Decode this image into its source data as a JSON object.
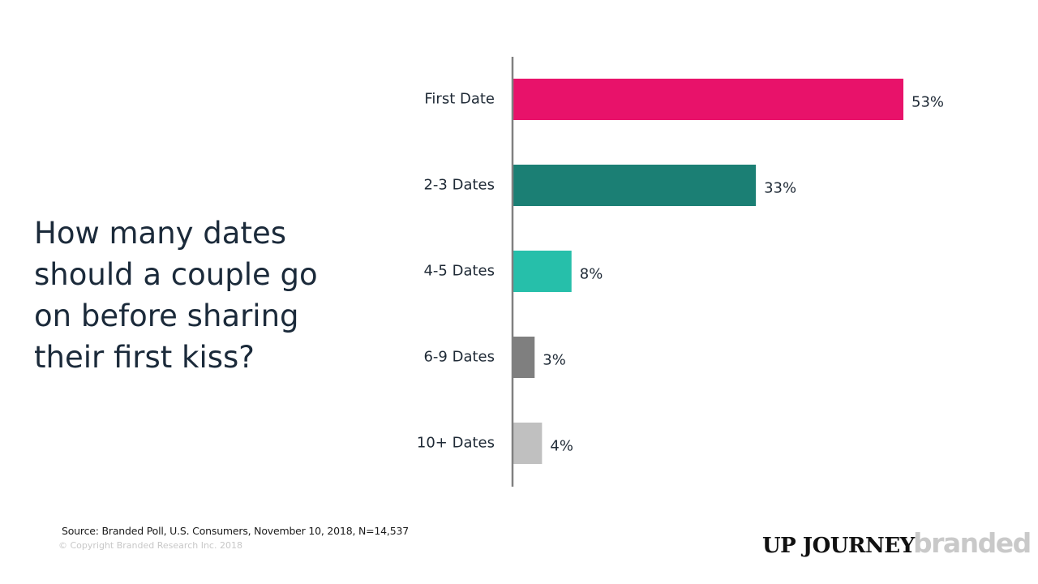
{
  "question": "How many dates should a couple go on before sharing their first kiss?",
  "source": "Source: Branded Poll, U.S. Consumers, November 10, 2018, N=14,537",
  "copyright": "© Copyright Branded Research Inc. 2018",
  "logos": {
    "upjourney": "UP JOURNEY",
    "branded": "branded"
  },
  "chart_data": {
    "type": "bar",
    "orientation": "horizontal",
    "title": "",
    "xlabel": "",
    "ylabel": "",
    "categories": [
      "First Date",
      "2-3 Dates",
      "4-5 Dates",
      "6-9 Dates",
      "10+ Dates"
    ],
    "values": [
      53,
      33,
      8,
      3,
      4
    ],
    "value_labels": [
      "53%",
      "33%",
      "8%",
      "3%",
      "4%"
    ],
    "colors": [
      "#e8126a",
      "#1b7f74",
      "#26bfaa",
      "#7f7f7f",
      "#c0c0c0"
    ],
    "xlim": [
      0,
      53
    ],
    "grid": false,
    "legend": "none"
  }
}
